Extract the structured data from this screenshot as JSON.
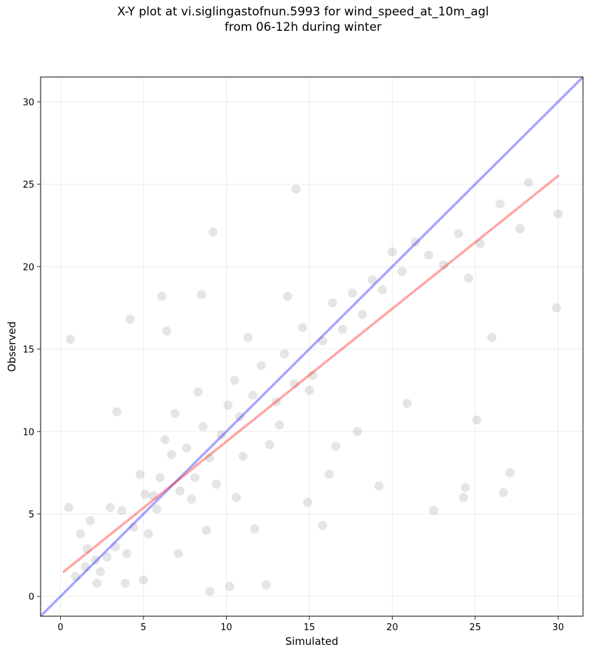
{
  "chart_data": {
    "type": "scatter",
    "title": [
      "X-Y plot at vi.siglingastofnun.5993 for wind_speed_at_10m_agl",
      "from 06-12h during winter"
    ],
    "xlabel": "Simulated",
    "ylabel": "Observed",
    "xlim": [
      -1.2,
      31.5
    ],
    "ylim": [
      -1.2,
      31.5
    ],
    "xticks": [
      0,
      5,
      10,
      15,
      20,
      25,
      30
    ],
    "yticks": [
      0,
      5,
      10,
      15,
      20,
      25,
      30
    ],
    "grid": true,
    "point_color": "#000000",
    "point_opacity": 0.1,
    "series": [
      {
        "type": "scatter",
        "color": "#000000",
        "x": [
          0.6,
          2.1,
          1.5,
          3.3,
          4.0,
          1.2,
          2.8,
          0.9,
          1.8,
          3.7,
          2.4,
          4.4,
          5.1,
          3.0,
          1.6,
          2.2,
          4.8,
          5.6,
          6.0,
          5.3,
          6.7,
          7.2,
          6.3,
          5.8,
          7.6,
          8.1,
          6.9,
          7.9,
          8.6,
          9.0,
          8.3,
          9.4,
          10.1,
          9.7,
          10.5,
          11.0,
          11.6,
          10.8,
          12.1,
          12.6,
          11.3,
          13.0,
          13.5,
          14.1,
          14.6,
          15.2,
          15.8,
          16.4,
          17.0,
          17.6,
          18.2,
          18.8,
          19.4,
          20.0,
          20.6,
          21.4,
          22.2,
          23.1,
          24.0,
          24.6,
          25.3,
          26.5,
          27.7,
          28.2,
          30.0,
          29.9,
          26.0,
          24.4,
          24.3,
          27.1,
          26.7,
          25.1,
          20.9,
          22.5,
          19.2,
          16.6,
          15.8,
          14.2,
          13.7,
          9.2,
          8.5,
          6.1,
          4.2,
          3.4,
          0.5,
          9.0,
          10.2,
          12.4,
          14.9,
          16.2,
          11.7,
          7.1,
          5.0,
          3.9,
          8.8,
          13.2,
          17.9,
          15.0,
          10.6,
          6.4
        ],
        "y": [
          15.6,
          2.2,
          1.8,
          3.0,
          2.6,
          3.8,
          2.4,
          1.2,
          4.6,
          5.2,
          1.5,
          4.2,
          6.2,
          5.4,
          2.9,
          0.8,
          7.4,
          6.1,
          7.2,
          3.8,
          8.6,
          6.4,
          9.5,
          5.3,
          9.0,
          7.2,
          11.1,
          5.9,
          10.3,
          8.4,
          12.4,
          6.8,
          11.6,
          9.8,
          13.1,
          8.5,
          12.2,
          10.9,
          14.0,
          9.2,
          15.7,
          11.8,
          14.7,
          12.9,
          16.3,
          13.4,
          15.5,
          17.8,
          16.2,
          18.4,
          17.1,
          19.2,
          18.6,
          20.9,
          19.7,
          21.5,
          20.7,
          20.1,
          22.0,
          19.3,
          21.4,
          23.8,
          22.3,
          25.1,
          23.2,
          17.5,
          15.7,
          6.6,
          6.0,
          7.5,
          6.3,
          10.7,
          11.7,
          5.2,
          6.7,
          9.1,
          4.3,
          24.7,
          18.2,
          22.1,
          18.3,
          18.2,
          16.8,
          11.2,
          5.4,
          0.3,
          0.6,
          0.7,
          5.7,
          7.4,
          4.1,
          2.6,
          1.0,
          0.8,
          4.0,
          10.4,
          10.0,
          12.5,
          6.0,
          16.1
        ]
      }
    ],
    "lines": [
      {
        "name": "",
        "color": "#0000ff",
        "opacity": 0.35,
        "x": [
          -1.2,
          31.5
        ],
        "y": [
          -1.2,
          31.5
        ]
      },
      {
        "name": "",
        "color": "#ff0000",
        "opacity": 0.35,
        "x": [
          0.2,
          30.0
        ],
        "y": [
          1.5,
          25.5
        ]
      }
    ]
  }
}
